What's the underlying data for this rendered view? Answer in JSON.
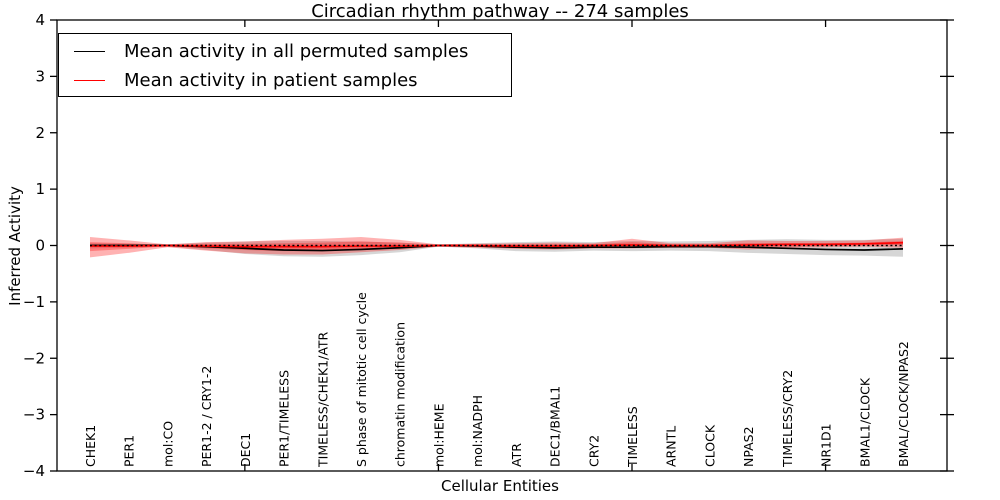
{
  "figure": {
    "title": "Circadian rhythm pathway -- 274 samples",
    "xlabel": "Cellular Entities",
    "ylabel": "Inferred Activity",
    "background_color": "#ffffff",
    "axis_color": "#000000"
  },
  "legend": {
    "position": "upper left",
    "items": [
      {
        "label": "Mean activity in all permuted samples",
        "color": "#000000"
      },
      {
        "label": "Mean activity in patient samples",
        "color": "#ff0000"
      }
    ]
  },
  "chart_data": {
    "type": "line",
    "title": "Circadian rhythm pathway -- 274 samples",
    "xlabel": "Cellular Entities",
    "ylabel": "Inferred Activity",
    "ylim": [
      -4,
      4
    ],
    "y_ticks": [
      4,
      3,
      2,
      1,
      0,
      -1,
      -2,
      -3,
      -4
    ],
    "y_tick_labels": [
      "4",
      "3",
      "2",
      "1",
      "0",
      "−1",
      "−2",
      "−3",
      "−4"
    ],
    "x_major_ticks_at_entity": [
      5,
      10,
      15,
      20
    ],
    "grid": false,
    "legend_position": "upper left",
    "zero_line": 0,
    "categories": [
      "CHEK1",
      "PER1",
      "mol:CO",
      "PER1-2 / CRY1-2",
      "DEC1",
      "PER1/TIMELESS",
      "TIMELESS/CHEK1/ATR",
      "S phase of mitotic cell cycle",
      "chromatin modification",
      "mol:HEME",
      "mol:NADPH",
      "ATR",
      "DEC1/BMAL1",
      "CRY2",
      "TIMELESS",
      "ARNTL",
      "CLOCK",
      "NPAS2",
      "TIMELESS/CRY2",
      "NR1D1",
      "BMAL1/CLOCK",
      "BMAL/CLOCK/NPAS2"
    ],
    "series": [
      {
        "name": "Mean activity in all permuted samples",
        "color": "#000000",
        "style": "solid",
        "values": [
          0.0,
          0.0,
          0.0,
          -0.02,
          -0.05,
          -0.08,
          -0.09,
          -0.07,
          -0.04,
          0.0,
          -0.01,
          -0.03,
          -0.04,
          -0.03,
          -0.03,
          -0.02,
          -0.02,
          -0.03,
          -0.05,
          -0.07,
          -0.08,
          -0.06
        ]
      },
      {
        "name": "Mean activity in patient samples",
        "color": "#ff0000",
        "style": "solid",
        "values": [
          -0.01,
          -0.01,
          0.0,
          -0.01,
          -0.02,
          -0.02,
          -0.02,
          -0.01,
          -0.01,
          0.0,
          0.0,
          -0.01,
          -0.01,
          0.0,
          0.01,
          0.0,
          0.0,
          0.01,
          0.02,
          0.02,
          0.03,
          0.05
        ]
      }
    ],
    "bands": [
      {
        "name": "permuted-samples-band",
        "color": "#999999",
        "opacity": 0.4,
        "upper": [
          0.04,
          0.03,
          0.02,
          0.05,
          0.07,
          0.08,
          0.08,
          0.07,
          0.05,
          0.02,
          0.04,
          0.06,
          0.07,
          0.06,
          0.08,
          0.07,
          0.08,
          0.1,
          0.11,
          0.1,
          0.1,
          0.12
        ],
        "lower": [
          -0.05,
          -0.04,
          -0.02,
          -0.08,
          -0.15,
          -0.19,
          -0.2,
          -0.17,
          -0.12,
          -0.02,
          -0.05,
          -0.1,
          -0.11,
          -0.09,
          -0.1,
          -0.09,
          -0.1,
          -0.13,
          -0.15,
          -0.17,
          -0.18,
          -0.2
        ]
      },
      {
        "name": "patient-samples-band-outer",
        "color": "#ff0000",
        "opacity": 0.3,
        "upper": [
          0.15,
          0.09,
          0.02,
          0.06,
          0.07,
          0.1,
          0.12,
          0.15,
          0.1,
          0.02,
          0.03,
          0.04,
          0.05,
          0.04,
          0.12,
          0.04,
          0.04,
          0.09,
          0.08,
          0.08,
          0.09,
          0.14
        ],
        "lower": [
          -0.21,
          -0.13,
          -0.03,
          -0.09,
          -0.14,
          -0.16,
          -0.16,
          -0.12,
          -0.08,
          -0.02,
          -0.04,
          -0.06,
          -0.07,
          -0.05,
          -0.05,
          -0.04,
          -0.04,
          -0.07,
          -0.04,
          -0.03,
          -0.02,
          -0.04
        ]
      },
      {
        "name": "patient-samples-band-inner",
        "color": "#ff0000",
        "opacity": 0.3,
        "upper": [
          0.06,
          0.04,
          0.01,
          0.03,
          0.03,
          0.04,
          0.05,
          0.07,
          0.05,
          0.01,
          0.015,
          0.02,
          0.025,
          0.02,
          0.06,
          0.02,
          0.02,
          0.045,
          0.04,
          0.04,
          0.05,
          0.08
        ],
        "lower": [
          -0.1,
          -0.06,
          -0.015,
          -0.05,
          -0.08,
          -0.1,
          -0.1,
          -0.07,
          -0.04,
          -0.01,
          -0.02,
          -0.03,
          -0.035,
          -0.025,
          -0.02,
          -0.02,
          -0.02,
          -0.03,
          -0.02,
          -0.01,
          0.0,
          0.01
        ]
      }
    ]
  }
}
